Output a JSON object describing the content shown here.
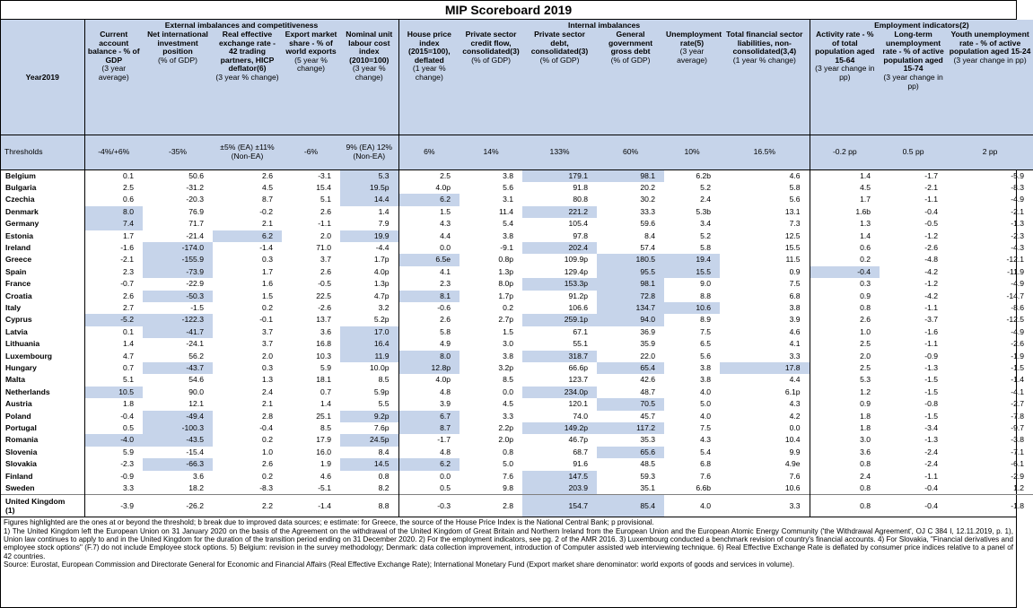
{
  "title": "MIP Scoreboard 2019",
  "group_headers": {
    "external": "External imbalances and competitiveness",
    "internal": "Internal imbalances",
    "employment": "Employment indicators(2)"
  },
  "year_label": "Year2019",
  "column_headers": [
    {
      "bold": "Current account balance - % of GDP",
      "normal": "(3 year average)"
    },
    {
      "bold": "Net international investment position",
      "normal": "(% of GDP)"
    },
    {
      "bold": "Real effective exchange rate - 42 trading partners, HICP deflator(6)",
      "normal": "(3 year % change)"
    },
    {
      "bold": "Export market share - % of world exports",
      "normal": "(5 year % change)"
    },
    {
      "bold": "Nominal unit labour cost index (2010=100)",
      "normal": "(3 year % change)"
    },
    {
      "bold": "House price index (2015=100), deflated",
      "normal": "(1 year % change)"
    },
    {
      "bold": "Private sector credit flow, consolidated(3)",
      "normal": "(% of GDP)"
    },
    {
      "bold": "Private sector debt, consolidated(3)",
      "normal": "(% of GDP)"
    },
    {
      "bold": "General government gross debt",
      "normal": "(% of GDP)"
    },
    {
      "bold": "Unemployment rate(5)",
      "normal": "(3 year average)"
    },
    {
      "bold": "Total financial sector liabilities, non-consolidated(3,4)",
      "normal": "(1 year % change)"
    },
    {
      "bold": "Activity rate - % of total population aged 15-64",
      "normal": "(3 year change in pp)"
    },
    {
      "bold": "Long-term unemployment rate - % of active population aged 15-74",
      "normal": "(3 year change in pp)"
    },
    {
      "bold": "Youth unemployment rate - % of active population aged 15-24",
      "normal": "(3 year change in pp)"
    }
  ],
  "thresholds_label": "Thresholds",
  "thresholds": [
    "-4%/+6%",
    "-35%",
    "±5% (EA) ±11% (Non-EA)",
    "-6%",
    "9% (EA) 12% (Non-EA)",
    "6%",
    "14%",
    "133%",
    "60%",
    "10%",
    "16.5%",
    "-0.2 pp",
    "0.5 pp",
    "2 pp"
  ],
  "rows": [
    {
      "country": "Belgium",
      "values": [
        "0.1",
        "50.6",
        "2.6",
        "-3.1",
        "5.3",
        "2.5",
        "3.8",
        "179.1",
        "98.1",
        "6.2b",
        "4.6",
        "1.4",
        "-1.7",
        "-5.9"
      ],
      "highlight": [
        4,
        7,
        8
      ]
    },
    {
      "country": "Bulgaria",
      "values": [
        "2.5",
        "-31.2",
        "4.5",
        "15.4",
        "19.5p",
        "4.0p",
        "5.6",
        "91.8",
        "20.2",
        "5.2",
        "5.8",
        "4.5",
        "-2.1",
        "-8.3"
      ],
      "highlight": [
        4
      ]
    },
    {
      "country": "Czechia",
      "values": [
        "0.6",
        "-20.3",
        "8.7",
        "5.1",
        "14.4",
        "6.2",
        "3.1",
        "80.8",
        "30.2",
        "2.4",
        "5.6",
        "1.7",
        "-1.1",
        "-4.9"
      ],
      "highlight": [
        4,
        5
      ]
    },
    {
      "country": "Denmark",
      "values": [
        "8.0",
        "76.9",
        "-0.2",
        "2.6",
        "1.4",
        "1.5",
        "11.4",
        "221.2",
        "33.3",
        "5.3b",
        "13.1",
        "1.6b",
        "-0.4",
        "-2.1"
      ],
      "highlight": [
        0,
        7
      ]
    },
    {
      "country": "Germany",
      "values": [
        "7.4",
        "71.7",
        "2.1",
        "-1.1",
        "7.9",
        "4.3",
        "5.4",
        "105.4",
        "59.6",
        "3.4",
        "7.3",
        "1.3",
        "-0.5",
        "-1.3"
      ],
      "highlight": [
        0
      ]
    },
    {
      "country": "Estonia",
      "values": [
        "1.7",
        "-21.4",
        "6.2",
        "2.0",
        "19.9",
        "4.4",
        "3.8",
        "97.8",
        "8.4",
        "5.2",
        "12.5",
        "1.4",
        "-1.2",
        "-2.3"
      ],
      "highlight": [
        2,
        4
      ]
    },
    {
      "country": "Ireland",
      "values": [
        "-1.6",
        "-174.0",
        "-1.4",
        "71.0",
        "-4.4",
        "0.0",
        "-9.1",
        "202.4",
        "57.4",
        "5.8",
        "15.5",
        "0.6",
        "-2.6",
        "-4.3"
      ],
      "highlight": [
        1,
        7
      ]
    },
    {
      "country": "Greece",
      "values": [
        "-2.1",
        "-155.9",
        "0.3",
        "3.7",
        "1.7p",
        "6.5e",
        "0.8p",
        "109.9p",
        "180.5",
        "19.4",
        "11.5",
        "0.2",
        "-4.8",
        "-12.1"
      ],
      "highlight": [
        1,
        5,
        8,
        9
      ]
    },
    {
      "country": "Spain",
      "values": [
        "2.3",
        "-73.9",
        "1.7",
        "2.6",
        "4.0p",
        "4.1",
        "1.3p",
        "129.4p",
        "95.5",
        "15.5",
        "0.9",
        "-0.4",
        "-4.2",
        "-11.9"
      ],
      "highlight": [
        1,
        8,
        9,
        11
      ]
    },
    {
      "country": "France",
      "values": [
        "-0.7",
        "-22.9",
        "1.6",
        "-0.5",
        "1.3p",
        "2.3",
        "8.0p",
        "153.3p",
        "98.1",
        "9.0",
        "7.5",
        "0.3",
        "-1.2",
        "-4.9"
      ],
      "highlight": [
        7,
        8
      ]
    },
    {
      "country": "Croatia",
      "values": [
        "2.6",
        "-50.3",
        "1.5",
        "22.5",
        "4.7p",
        "8.1",
        "1.7p",
        "91.2p",
        "72.8",
        "8.8",
        "6.8",
        "0.9",
        "-4.2",
        "-14.7"
      ],
      "highlight": [
        1,
        5,
        8
      ]
    },
    {
      "country": "Italy",
      "values": [
        "2.7",
        "-1.5",
        "0.2",
        "-2.6",
        "3.2",
        "-0.6",
        "0.2",
        "106.6",
        "134.7",
        "10.6",
        "3.8",
        "0.8",
        "-1.1",
        "-8.6"
      ],
      "highlight": [
        8,
        9
      ]
    },
    {
      "country": "Cyprus",
      "values": [
        "-5.2",
        "-122.3",
        "-0.1",
        "13.7",
        "5.2p",
        "2.6",
        "2.7p",
        "259.1p",
        "94.0",
        "8.9",
        "3.9",
        "2.6",
        "-3.7",
        "-12.5"
      ],
      "highlight": [
        0,
        1,
        7,
        8
      ]
    },
    {
      "country": "Latvia",
      "values": [
        "0.1",
        "-41.7",
        "3.7",
        "3.6",
        "17.0",
        "5.8",
        "1.5",
        "67.1",
        "36.9",
        "7.5",
        "4.6",
        "1.0",
        "-1.6",
        "-4.9"
      ],
      "highlight": [
        1,
        4
      ]
    },
    {
      "country": "Lithuania",
      "values": [
        "1.4",
        "-24.1",
        "3.7",
        "16.8",
        "16.4",
        "4.9",
        "3.0",
        "55.1",
        "35.9",
        "6.5",
        "4.1",
        "2.5",
        "-1.1",
        "-2.6"
      ],
      "highlight": [
        4
      ]
    },
    {
      "country": "Luxembourg",
      "values": [
        "4.7",
        "56.2",
        "2.0",
        "10.3",
        "11.9",
        "8.0",
        "3.8",
        "318.7",
        "22.0",
        "5.6",
        "3.3",
        "2.0",
        "-0.9",
        "-1.9"
      ],
      "highlight": [
        4,
        5,
        7
      ]
    },
    {
      "country": "Hungary",
      "values": [
        "0.7",
        "-43.7",
        "0.3",
        "5.9",
        "10.0p",
        "12.8p",
        "3.2p",
        "66.6p",
        "65.4",
        "3.8",
        "17.8",
        "2.5",
        "-1.3",
        "-1.5"
      ],
      "highlight": [
        1,
        5,
        8,
        10
      ]
    },
    {
      "country": "Malta",
      "values": [
        "5.1",
        "54.6",
        "1.3",
        "18.1",
        "8.5",
        "4.0p",
        "8.5",
        "123.7",
        "42.6",
        "3.8",
        "4.4",
        "5.3",
        "-1.5",
        "-1.4"
      ],
      "highlight": []
    },
    {
      "country": "Netherlands",
      "values": [
        "10.5",
        "90.0",
        "2.4",
        "0.7",
        "5.9p",
        "4.8",
        "0.0",
        "234.0p",
        "48.7",
        "4.0",
        "6.1p",
        "1.2",
        "-1.5",
        "-4.1"
      ],
      "highlight": [
        0,
        7
      ]
    },
    {
      "country": "Austria",
      "values": [
        "1.8",
        "12.1",
        "2.1",
        "1.4",
        "5.5",
        "3.9",
        "4.5",
        "120.1",
        "70.5",
        "5.0",
        "4.3",
        "0.9",
        "-0.8",
        "-2.7"
      ],
      "highlight": [
        8
      ]
    },
    {
      "country": "Poland",
      "values": [
        "-0.4",
        "-49.4",
        "2.8",
        "25.1",
        "9.2p",
        "6.7",
        "3.3",
        "74.0",
        "45.7",
        "4.0",
        "4.2",
        "1.8",
        "-1.5",
        "-7.8"
      ],
      "highlight": [
        1,
        4,
        5
      ]
    },
    {
      "country": "Portugal",
      "values": [
        "0.5",
        "-100.3",
        "-0.4",
        "8.5",
        "7.6p",
        "8.7",
        "2.2p",
        "149.2p",
        "117.2",
        "7.5",
        "0.0",
        "1.8",
        "-3.4",
        "-9.7"
      ],
      "highlight": [
        1,
        5,
        7,
        8
      ]
    },
    {
      "country": "Romania",
      "values": [
        "-4.0",
        "-43.5",
        "0.2",
        "17.9",
        "24.5p",
        "-1.7",
        "2.0p",
        "46.7p",
        "35.3",
        "4.3",
        "10.4",
        "3.0",
        "-1.3",
        "-3.8"
      ],
      "highlight": [
        0,
        1,
        4
      ]
    },
    {
      "country": "Slovenia",
      "values": [
        "5.9",
        "-15.4",
        "1.0",
        "16.0",
        "8.4",
        "4.8",
        "0.8",
        "68.7",
        "65.6",
        "5.4",
        "9.9",
        "3.6",
        "-2.4",
        "-7.1"
      ],
      "highlight": [
        8
      ]
    },
    {
      "country": "Slovakia",
      "values": [
        "-2.3",
        "-66.3",
        "2.6",
        "1.9",
        "14.5",
        "6.2",
        "5.0",
        "91.6",
        "48.5",
        "6.8",
        "4.9e",
        "0.8",
        "-2.4",
        "-6.1"
      ],
      "highlight": [
        1,
        4,
        5
      ]
    },
    {
      "country": "Finland",
      "values": [
        "-0.9",
        "3.6",
        "0.2",
        "4.6",
        "0.8",
        "0.0",
        "7.6",
        "147.5",
        "59.3",
        "7.6",
        "7.6",
        "2.4",
        "-1.1",
        "-2.9"
      ],
      "highlight": [
        7
      ]
    },
    {
      "country": "Sweden",
      "values": [
        "3.3",
        "18.2",
        "-8.3",
        "-5.1",
        "8.2",
        "0.5",
        "9.8",
        "203.9",
        "35.1",
        "6.6b",
        "10.6",
        "0.8",
        "-0.4",
        "1.2"
      ],
      "highlight": [
        7
      ]
    },
    {
      "country": "United Kingdom (1)",
      "values": [
        "-3.9",
        "-26.2",
        "2.2",
        "-1.4",
        "8.8",
        "-0.3",
        "2.8",
        "154.7",
        "85.4",
        "4.0",
        "3.3",
        "0.8",
        "-0.4",
        "-1.8"
      ],
      "highlight": [
        7,
        8
      ]
    }
  ],
  "footnotes": [
    "Figures highlighted are the ones at or beyond the threshold; b break due to improved data sources; e estimate: for Greece, the source of the House Price Index is the National Central Bank; p provisional.",
    "1)  The United Kingdom left the European Union on 31 January 2020 on the basis of the Agreement on the withdrawal of the United Kingdom of Great Britain and Northern Ireland from the European Union and the European Atomic Energy Community ('the Withdrawal Agreement', OJ C 384 I, 12.11.2019, p. 1), Union law continues to apply to and in the United Kingdom for the duration of the transition period ending on 31 December 2020. 2) For the employment indicators, see pg. 2 of the AMR 2016. 3) Luxembourg conducted a benchmark revision of country's financial accounts. 4) For Slovakia, \"Financial derivatives and employee stock options\" (F.7) do not include Employee stock options. 5) Belgium: revision in the survey methodology; Denmark: data collection improvement, introduction of Computer assisted web interviewing technique. 6) Real Effective Exchange Rate is deflated by consumer price indices relative to a panel of 42 countries.",
    "Source: Eurostat, European Commission and Directorate General for Economic and Financial Affairs (Real Effective Exchange Rate); International Monetary Fund (Export market share denominator: world exports of goods and services in volume)."
  ]
}
